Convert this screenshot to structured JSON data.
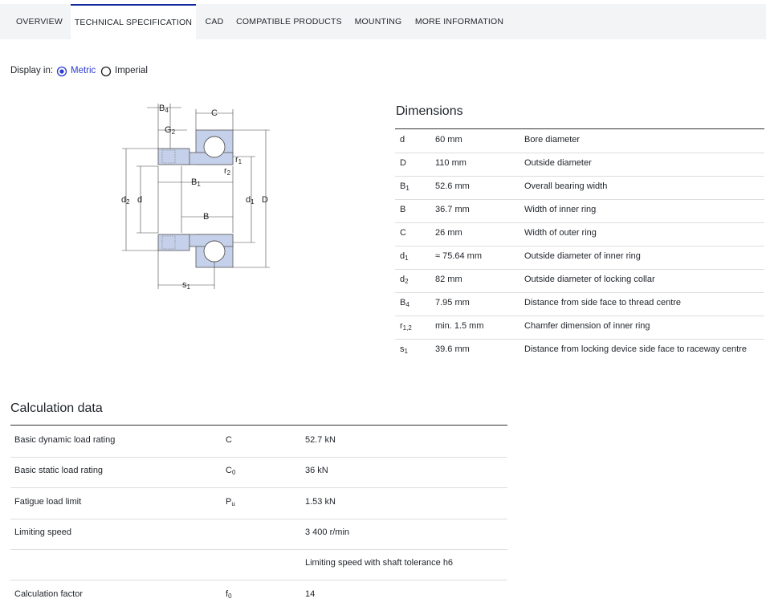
{
  "tabs": [
    "OVERVIEW",
    "TECHNICAL SPECIFICATION",
    "CAD",
    "COMPATIBLE PRODUCTS",
    "MOUNTING",
    "MORE INFORMATION"
  ],
  "display": {
    "label": "Display in:",
    "options": [
      "Metric",
      "Imperial"
    ]
  },
  "diagram": {
    "labels": [
      {
        "base": "B",
        "sub": "4"
      },
      {
        "base": "G",
        "sub": "2"
      },
      {
        "base": "C"
      },
      {
        "base": "r",
        "sub": "1"
      },
      {
        "base": "r",
        "sub": "2"
      },
      {
        "base": "B",
        "sub": "1"
      },
      {
        "base": "B"
      },
      {
        "base": "d",
        "sub": "2"
      },
      {
        "base": "d"
      },
      {
        "base": "d",
        "sub": "1"
      },
      {
        "base": "D"
      },
      {
        "base": "s",
        "sub": "1"
      }
    ]
  },
  "dimensions": {
    "title": "Dimensions",
    "rows": [
      {
        "symbol": {
          "base": "d"
        },
        "value": "60 mm",
        "description": "Bore diameter"
      },
      {
        "symbol": {
          "base": "D"
        },
        "value": "110 mm",
        "description": "Outside diameter"
      },
      {
        "symbol": {
          "base": "B",
          "sub": "1"
        },
        "value": "52.6 mm",
        "description": "Overall bearing width"
      },
      {
        "symbol": {
          "base": "B"
        },
        "value": "36.7 mm",
        "description": "Width of inner ring"
      },
      {
        "symbol": {
          "base": "C"
        },
        "value": "26 mm",
        "description": "Width of outer ring"
      },
      {
        "symbol": {
          "base": "d",
          "sub": "1"
        },
        "value": "≈ 75.64 mm",
        "description": "Outside diameter of inner ring"
      },
      {
        "symbol": {
          "base": "d",
          "sub": "2"
        },
        "value": "82 mm",
        "description": "Outside diameter of locking collar"
      },
      {
        "symbol": {
          "base": "B",
          "sub": "4"
        },
        "value": "7.95 mm",
        "description": "Distance from side face to thread centre"
      },
      {
        "symbol": {
          "base": "r",
          "sub": "1,2"
        },
        "value": "min. 1.5 mm",
        "description": "Chamfer dimension of inner ring"
      },
      {
        "symbol": {
          "base": "s",
          "sub": "1"
        },
        "value": "39.6 mm",
        "description": "Distance from locking device side face to raceway centre"
      }
    ]
  },
  "calculation": {
    "title": "Calculation data",
    "rows": [
      {
        "label": "Basic dynamic load rating",
        "symbol": {
          "base": "C"
        },
        "value": "52.7 kN"
      },
      {
        "label": "Basic static load rating",
        "symbol": {
          "base": "C",
          "sub": "0"
        },
        "value": "36 kN"
      },
      {
        "label": "Fatigue load limit",
        "symbol": {
          "base": "P",
          "sub": "u"
        },
        "value": "1.53 kN"
      },
      {
        "label": "Limiting speed",
        "value": "3 400 r/min"
      },
      {
        "value": "Limiting speed with shaft tolerance h6"
      },
      {
        "label": "Calculation factor",
        "symbol": {
          "base": "f",
          "sub": "0"
        },
        "value": "14"
      }
    ]
  }
}
